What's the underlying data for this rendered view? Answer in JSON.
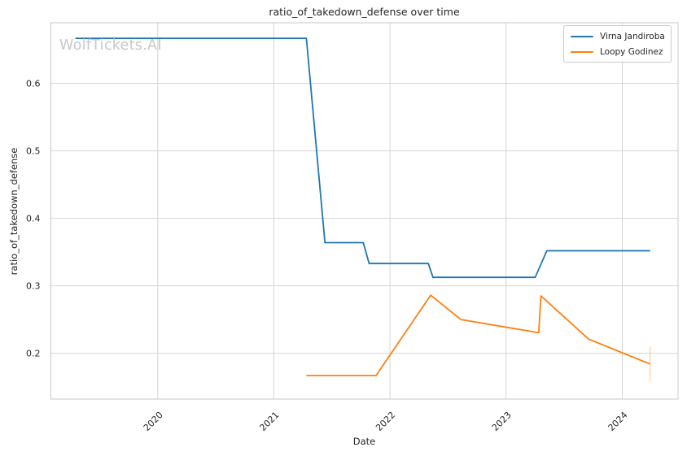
{
  "chart_data": {
    "type": "line",
    "title": "ratio_of_takedown_defense over time",
    "xlabel": "Date",
    "ylabel": "ratio_of_takedown_defense",
    "watermark": "WolfTickets.AI",
    "grid": true,
    "legend_position": "upper right",
    "x_range": [
      2019.08,
      2024.48
    ],
    "y_range": [
      0.132,
      0.69
    ],
    "x_ticks": [
      2020,
      2021,
      2022,
      2023,
      2024
    ],
    "x_tick_labels": [
      "2020",
      "2021",
      "2022",
      "2023",
      "2024"
    ],
    "y_ticks": [
      0.2,
      0.3,
      0.4,
      0.5,
      0.6
    ],
    "y_tick_labels": [
      "0.2",
      "0.3",
      "0.4",
      "0.5",
      "0.6"
    ],
    "colors": {
      "grid": "#d5d5d5",
      "spine": "#c8c8c8",
      "text": "#262626",
      "watermark": "#c8c8c8",
      "background": "#ffffff",
      "series_blue": "#1f77b4",
      "series_orange": "#ff7f0e"
    },
    "series": [
      {
        "name": "Virna Jandiroba",
        "color": "#1f77b4",
        "points": [
          [
            2019.29,
            0.667
          ],
          [
            2021.28,
            0.667
          ],
          [
            2021.44,
            0.364
          ],
          [
            2021.77,
            0.364
          ],
          [
            2021.82,
            0.333
          ],
          [
            2022.33,
            0.333
          ],
          [
            2022.37,
            0.3125
          ],
          [
            2023.25,
            0.3125
          ],
          [
            2023.35,
            0.352
          ],
          [
            2024.24,
            0.352
          ]
        ]
      },
      {
        "name": "Loopy Godinez",
        "color": "#ff7f0e",
        "points": [
          [
            2021.28,
            0.167
          ],
          [
            2021.88,
            0.167
          ],
          [
            2022.35,
            0.286
          ],
          [
            2022.61,
            0.25
          ],
          [
            2023.28,
            0.2305
          ],
          [
            2023.3,
            0.285
          ],
          [
            2023.71,
            0.221
          ],
          [
            2024.24,
            0.184
          ]
        ],
        "error_bar_last": {
          "x": 2024.24,
          "y_low": 0.158,
          "y_high": 0.21
        }
      }
    ]
  }
}
